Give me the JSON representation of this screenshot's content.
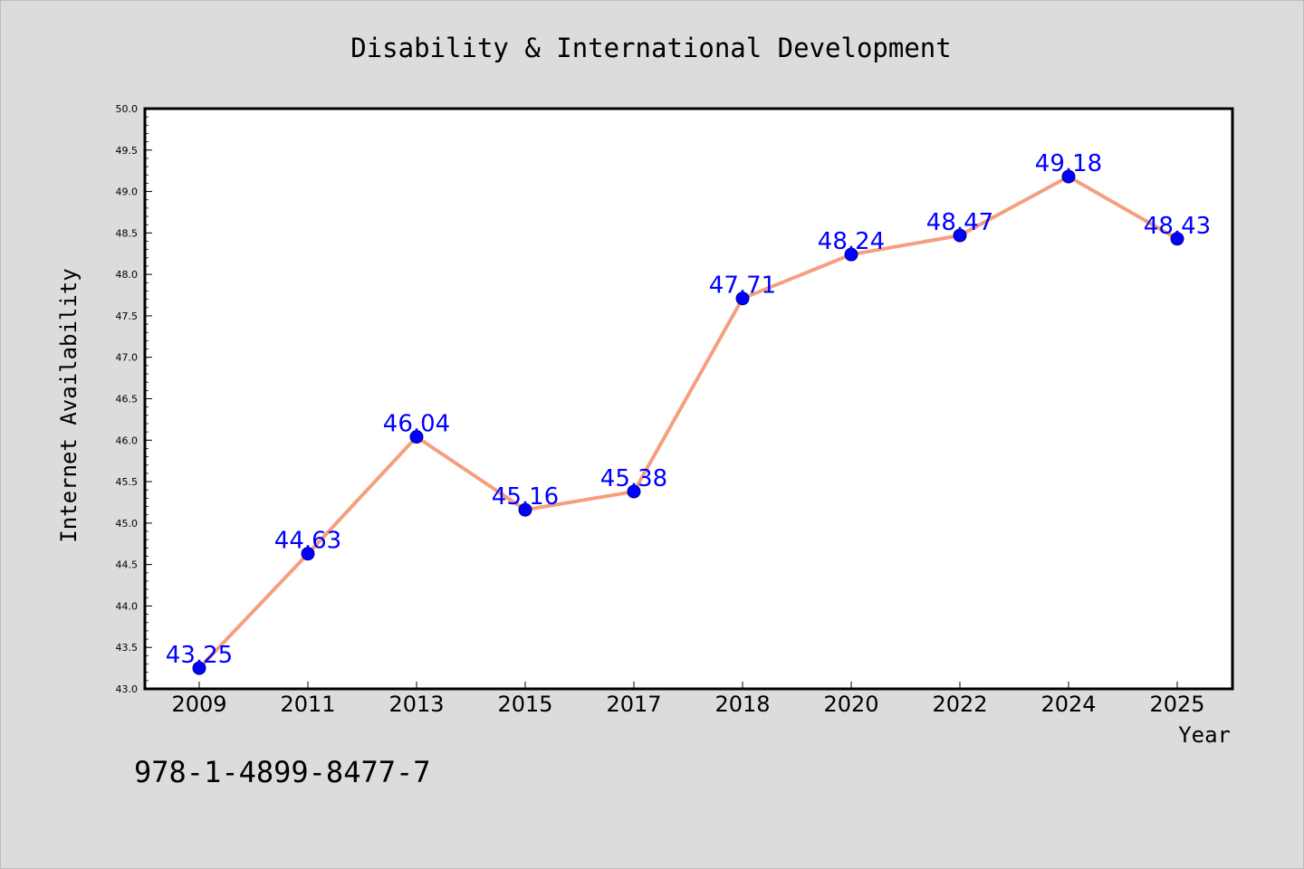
{
  "chart_data": {
    "type": "line",
    "title": "Disability & International Development",
    "xlabel": "Year",
    "ylabel": "Internet Availability",
    "categories": [
      "2009",
      "2011",
      "2013",
      "2015",
      "2017",
      "2018",
      "2020",
      "2022",
      "2024",
      "2025"
    ],
    "series": [
      {
        "values": [
          43.25,
          44.63,
          46.04,
          45.16,
          45.38,
          47.71,
          48.24,
          48.47,
          49.18,
          48.43
        ],
        "labels": [
          "43.25",
          "44.63",
          "46.04",
          "45.16",
          "45.38",
          "47.71",
          "48.24",
          "48.47",
          "49.18",
          "48.43"
        ]
      }
    ],
    "ylim": [
      43.0,
      50.0
    ],
    "yticks": [
      "43.0",
      "43.5",
      "44.0",
      "44.5",
      "45.0",
      "45.5",
      "46.0",
      "46.5",
      "47.0",
      "47.5",
      "48.0",
      "48.5",
      "49.0",
      "49.5",
      "50.0"
    ],
    "grid": false,
    "colors": {
      "line": "#f4a07f",
      "marker": "#0000ff",
      "label": "#0000ff",
      "background": "#dcdcdc",
      "plot_background": "#ffffff"
    }
  },
  "footer": {
    "isbn": "978-1-4899-8477-7"
  }
}
